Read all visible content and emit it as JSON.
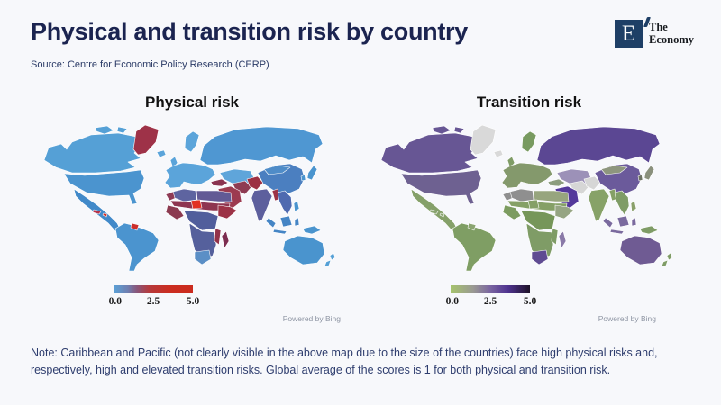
{
  "colors": {
    "background": "#f7f8fb",
    "title": "#1b2450",
    "logo-navy": "#1e3f66",
    "source": "#2a3a66",
    "map-title": "#111111",
    "note": "#2e3d6e",
    "powered": "#8e95a3"
  },
  "header": {
    "title": "Physical and transition risk by country",
    "source": "Source: Centre for Economic Policy Research (CERP)",
    "logo": {
      "letter": "E",
      "line1": "The",
      "line2": "Economy"
    }
  },
  "note": "Note: Caribbean and Pacific (not clearly visible in the above map due to the size of the countries) face high physical risks and, respectively, high and elevated transition risks. Global average of the scores is 1 for both physical and transition risk.",
  "chart_data": [
    {
      "type": "choropleth",
      "title": "Physical risk",
      "attribution": "Powered by Bing",
      "colorbar": {
        "range": [
          0,
          5
        ],
        "ticks": [
          "0.0",
          "2.5",
          "5.0"
        ],
        "gradient_stops": [
          "#5aa2d8 0%",
          "#6f7fb0 18%",
          "#8a5578 30%",
          "#b53a3c 45%",
          "#cb2d20 70%",
          "#cb2b1e 100%"
        ]
      },
      "regions": [
        {
          "id": "russia",
          "label": "Russia",
          "score": 1.2,
          "color": "#4f97d2"
        },
        {
          "id": "canada",
          "label": "Canada",
          "score": 1.0,
          "color": "#55a0d6"
        },
        {
          "id": "arctic-islands",
          "label": "Canadian Arctic",
          "score": 1.0,
          "color": "#55a0d6"
        },
        {
          "id": "greenland",
          "label": "Greenland",
          "score": 4.3,
          "color": "#9e3248"
        },
        {
          "id": "usa",
          "label": "United States",
          "score": 1.2,
          "color": "#4b94cf"
        },
        {
          "id": "mexico",
          "label": "Mexico & Central America",
          "score": 1.5,
          "color": "#4189c9"
        },
        {
          "id": "cuba",
          "label": "Cuba",
          "score": 4.0,
          "color": "#b5344a"
        },
        {
          "id": "hispaniola",
          "label": "Hispaniola",
          "score": 4.8,
          "color": "#d03028"
        },
        {
          "id": "south-america",
          "label": "South America",
          "score": 1.2,
          "color": "#4b94cf"
        },
        {
          "id": "guianas",
          "label": "Guyana & Suriname",
          "score": 4.7,
          "color": "#cc2e2a"
        },
        {
          "id": "iceland",
          "label": "Iceland",
          "score": 0.5,
          "color": "#5ba4da"
        },
        {
          "id": "uk",
          "label": "United Kingdom",
          "score": 0.7,
          "color": "#5ba4da"
        },
        {
          "id": "europe",
          "label": "Europe",
          "score": 0.8,
          "color": "#5ba4da"
        },
        {
          "id": "scandinavia",
          "label": "Scandinavia",
          "score": 0.6,
          "color": "#5ba4da"
        },
        {
          "id": "kazakhstan",
          "label": "Central Asia",
          "score": 1.0,
          "color": "#5fa5da"
        },
        {
          "id": "turkey",
          "label": "Turkey",
          "score": 3.9,
          "color": "#8a3350"
        },
        {
          "id": "iran",
          "label": "Iran",
          "score": 3.8,
          "color": "#8e3b52"
        },
        {
          "id": "pakistan",
          "label": "Pakistan & Afghanistan",
          "score": 4.2,
          "color": "#9c2f42"
        },
        {
          "id": "middle-east",
          "label": "Arabian Peninsula",
          "score": 4.2,
          "color": "#9c3a50"
        },
        {
          "id": "china",
          "label": "China",
          "score": 1.9,
          "color": "#4b7fc0"
        },
        {
          "id": "mongolia",
          "label": "Mongolia",
          "score": 1.6,
          "color": "#4f8cc8"
        },
        {
          "id": "korea",
          "label": "Korea",
          "score": 1.3,
          "color": "#4a94ce"
        },
        {
          "id": "japan",
          "label": "Japan",
          "score": 1.2,
          "color": "#4a94ce"
        },
        {
          "id": "india",
          "label": "India",
          "score": 3.1,
          "color": "#5d5f9d"
        },
        {
          "id": "myanmar",
          "label": "Myanmar & Bangladesh",
          "score": 4.1,
          "color": "#9c3246"
        },
        {
          "id": "southeast-asia",
          "label": "Indochina",
          "score": 2.4,
          "color": "#4f6ab0"
        },
        {
          "id": "philippines",
          "label": "Philippines",
          "score": 1.4,
          "color": "#4a94ce"
        },
        {
          "id": "indonesia",
          "label": "Indonesia",
          "score": 2.2,
          "color": "#4585c5"
        },
        {
          "id": "new-guinea",
          "label": "New Guinea",
          "score": 1.3,
          "color": "#4a94ce"
        },
        {
          "id": "morocco",
          "label": "Morocco",
          "score": 3.8,
          "color": "#8e3a55"
        },
        {
          "id": "maghreb",
          "label": "Algeria & Tunisia",
          "score": 2.8,
          "color": "#5e64a0"
        },
        {
          "id": "libya-egypt",
          "label": "Libya & Egypt",
          "score": 3.0,
          "color": "#625a95"
        },
        {
          "id": "sahel",
          "label": "Sahel",
          "score": 4.1,
          "color": "#8e3550"
        },
        {
          "id": "niger",
          "label": "Niger",
          "score": 5.0,
          "color": "#e23023"
        },
        {
          "id": "west-africa",
          "label": "West Africa",
          "score": 3.9,
          "color": "#8c3a50"
        },
        {
          "id": "central-africa",
          "label": "Central Africa",
          "score": 2.9,
          "color": "#515e9c"
        },
        {
          "id": "east-africa",
          "label": "Horn of Africa",
          "score": 4.0,
          "color": "#9c3246"
        },
        {
          "id": "southern-africa",
          "label": "Southern Africa",
          "score": 2.9,
          "color": "#55609c"
        },
        {
          "id": "mozambique",
          "label": "Mozambique",
          "score": 3.9,
          "color": "#93324a"
        },
        {
          "id": "south-africa",
          "label": "South Africa",
          "score": 1.7,
          "color": "#5b8fc6"
        },
        {
          "id": "madagascar",
          "label": "Madagascar",
          "score": 4.4,
          "color": "#7c2d50"
        },
        {
          "id": "australia",
          "label": "Australia",
          "score": 1.2,
          "color": "#4a94ce"
        },
        {
          "id": "new-zealand",
          "label": "New Zealand",
          "score": 0.9,
          "color": "#55a0d6"
        }
      ]
    },
    {
      "type": "choropleth",
      "title": "Transition risk",
      "attribution": "Powered by Bing",
      "no_data_color": "#d9d9d9",
      "colorbar": {
        "range": [
          0,
          5
        ],
        "ticks": [
          "0.0",
          "2.5",
          "5.0"
        ],
        "gradient_stops": [
          "#a6c46c 0%",
          "#9a9a92 28%",
          "#7a65a0 50%",
          "#4f3390 72%",
          "#1e1228 100%"
        ]
      },
      "regions": [
        {
          "id": "russia",
          "label": "Russia",
          "score": 4.3,
          "color": "#5b4793"
        },
        {
          "id": "canada",
          "label": "Canada",
          "score": 3.4,
          "color": "#675694"
        },
        {
          "id": "arctic-islands",
          "label": "Canadian Arctic",
          "score": 3.4,
          "color": "#675694"
        },
        {
          "id": "greenland",
          "label": "Greenland",
          "score": null,
          "color": "#d9d9d9"
        },
        {
          "id": "usa",
          "label": "United States",
          "score": 3.2,
          "color": "#6e6191"
        },
        {
          "id": "mexico",
          "label": "Mexico & Central America",
          "score": 1.5,
          "color": "#85a069"
        },
        {
          "id": "cuba",
          "label": "Cuba",
          "score": 1.5,
          "color": "#8aa470"
        },
        {
          "id": "hispaniola",
          "label": "Hispaniola",
          "score": 1.5,
          "color": "#8aa470"
        },
        {
          "id": "south-america",
          "label": "South America",
          "score": 1.3,
          "color": "#7f9e64"
        },
        {
          "id": "guianas",
          "label": "Guyana & Suriname",
          "score": 1.5,
          "color": "#8aa470"
        },
        {
          "id": "iceland",
          "label": "Iceland",
          "score": null,
          "color": "#d9d9d9"
        },
        {
          "id": "uk",
          "label": "United Kingdom",
          "score": 1.4,
          "color": "#7f9c66"
        },
        {
          "id": "europe",
          "label": "Europe",
          "score": 1.5,
          "color": "#84996c"
        },
        {
          "id": "scandinavia",
          "label": "Scandinavia",
          "score": 1.3,
          "color": "#789a60"
        },
        {
          "id": "kazakhstan",
          "label": "Central Asia",
          "score": 2.8,
          "color": "#9c91b8"
        },
        {
          "id": "turkey",
          "label": "Turkey",
          "score": 1.8,
          "color": "#8b9c7d"
        },
        {
          "id": "iran",
          "label": "Iran",
          "score": null,
          "color": "#d6d6d6"
        },
        {
          "id": "pakistan",
          "label": "Pakistan & Afghanistan",
          "score": null,
          "color": "#d6d6d6"
        },
        {
          "id": "middle-east",
          "label": "Arabian Peninsula",
          "score": 4.6,
          "color": "#54399b"
        },
        {
          "id": "china",
          "label": "China",
          "score": 3.4,
          "color": "#6b5a9b"
        },
        {
          "id": "mongolia",
          "label": "Mongolia",
          "score": 2.2,
          "color": "#8e967e"
        },
        {
          "id": "korea",
          "label": "Korea",
          "score": 2.6,
          "color": "#6e7364"
        },
        {
          "id": "japan",
          "label": "Japan",
          "score": 2.2,
          "color": "#8a907c"
        },
        {
          "id": "india",
          "label": "India",
          "score": 1.4,
          "color": "#87a268"
        },
        {
          "id": "myanmar",
          "label": "Myanmar & Bangladesh",
          "score": 1.5,
          "color": "#85a066"
        },
        {
          "id": "southeast-asia",
          "label": "Indochina",
          "score": 1.6,
          "color": "#7f9c66"
        },
        {
          "id": "philippines",
          "label": "Philippines",
          "score": 1.4,
          "color": "#8aa06a"
        },
        {
          "id": "indonesia",
          "label": "Indonesia",
          "score": 2.9,
          "color": "#7a6a9e"
        },
        {
          "id": "new-guinea",
          "label": "New Guinea",
          "score": 1.3,
          "color": "#7f9c66"
        },
        {
          "id": "morocco",
          "label": "Morocco",
          "score": null,
          "color": "#8f8f8f"
        },
        {
          "id": "maghreb",
          "label": "Algeria & Tunisia",
          "score": null,
          "color": "#8f8f8f"
        },
        {
          "id": "libya-egypt",
          "label": "Libya & Egypt",
          "score": 1.7,
          "color": "#97a57e"
        },
        {
          "id": "sahel",
          "label": "Sahel",
          "score": 1.4,
          "color": "#85a066"
        },
        {
          "id": "niger",
          "label": "Niger",
          "score": 1.4,
          "color": "#85a066"
        },
        {
          "id": "west-africa",
          "label": "West Africa",
          "score": 1.4,
          "color": "#7c9c60"
        },
        {
          "id": "central-africa",
          "label": "Central Africa",
          "score": 1.6,
          "color": "#769659"
        },
        {
          "id": "east-africa",
          "label": "Horn of Africa",
          "score": 1.5,
          "color": "#96a583"
        },
        {
          "id": "southern-africa",
          "label": "Southern Africa",
          "score": 1.4,
          "color": "#7f9c66"
        },
        {
          "id": "mozambique",
          "label": "Mozambique",
          "score": 1.4,
          "color": "#7f9c66"
        },
        {
          "id": "south-africa",
          "label": "South Africa",
          "score": 3.8,
          "color": "#5f4b92"
        },
        {
          "id": "madagascar",
          "label": "Madagascar",
          "score": 2.4,
          "color": "#8a7aa8"
        },
        {
          "id": "australia",
          "label": "Australia",
          "score": 3.5,
          "color": "#6f5b93"
        },
        {
          "id": "new-zealand",
          "label": "New Zealand",
          "score": 1.2,
          "color": "#7f9c66"
        }
      ]
    }
  ]
}
